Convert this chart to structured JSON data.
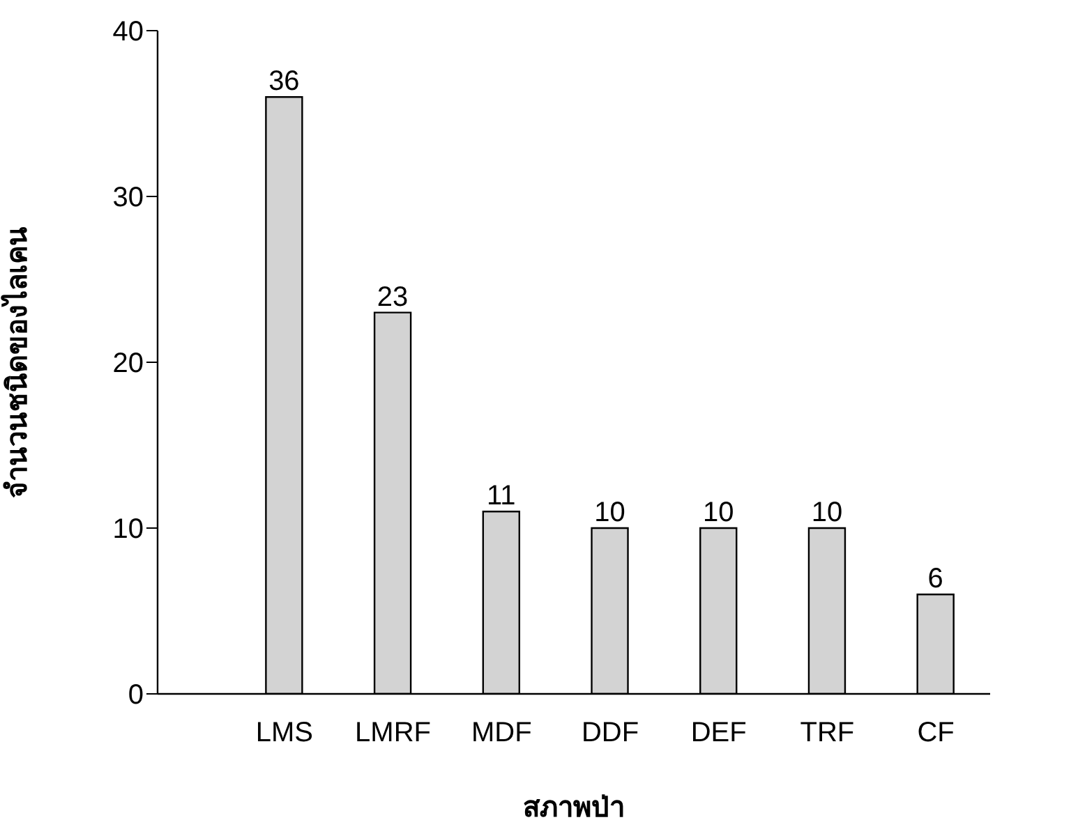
{
  "chart_data": {
    "type": "bar",
    "xlabel": "สภาพป่า",
    "ylabel": "จำนวนชนิดของไลเคน",
    "categories": [
      "LMS",
      "LMRF",
      "MDF",
      "DDF",
      "DEF",
      "TRF",
      "CF"
    ],
    "values": [
      36,
      23,
      11,
      10,
      10,
      10,
      6
    ],
    "color": "#d3d3d3",
    "ylim": [
      0,
      40
    ],
    "yticks": [
      0,
      10,
      20,
      30,
      40
    ],
    "grid": false,
    "legend": false,
    "data_labels": true
  }
}
